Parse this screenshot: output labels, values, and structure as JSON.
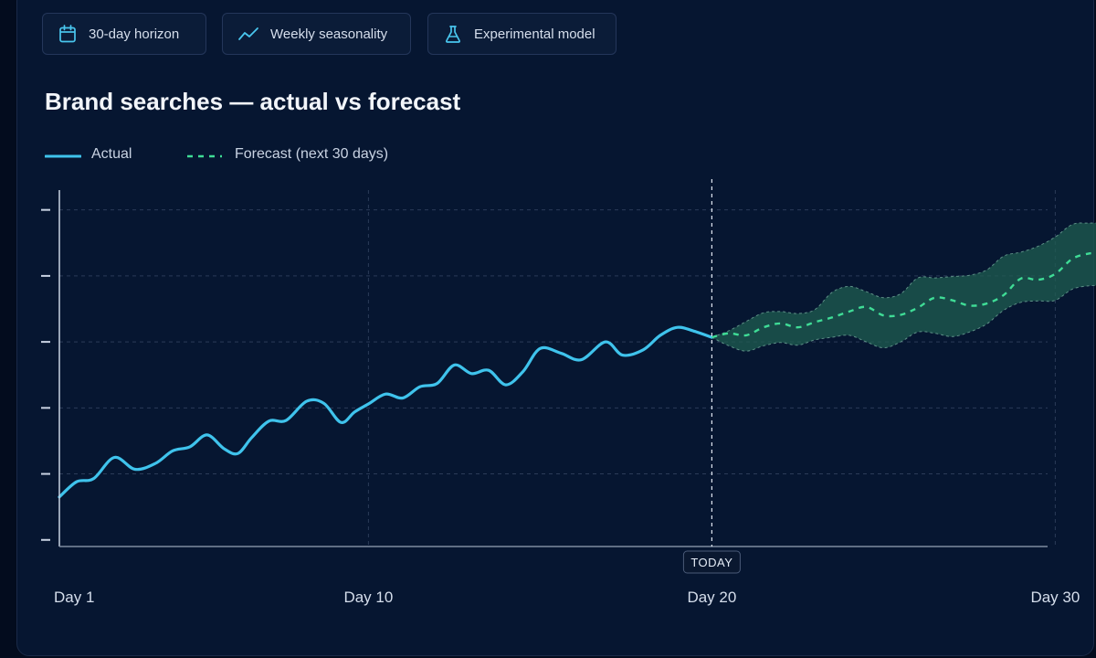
{
  "toolbar": {
    "chips": [
      {
        "label": "30-day horizon",
        "icon": "calendar-icon"
      },
      {
        "label": "Weekly seasonality",
        "icon": "trend-line-icon"
      },
      {
        "label": "Experimental model",
        "icon": "flask-icon"
      }
    ]
  },
  "colors": {
    "actual": "#3fc3ec",
    "forecast": "#3fdc96",
    "band": "#1f5e50",
    "accent_icon": "#49c6ee"
  },
  "chart_data": {
    "type": "line",
    "title": "Brand searches — actual vs forecast",
    "xlabel": "",
    "ylabel": "",
    "x_ticks": [
      {
        "day": 1,
        "label": "Day 1"
      },
      {
        "day": 10,
        "label": "Day 10"
      },
      {
        "day": 20,
        "label": "Day 20"
      },
      {
        "day": 30,
        "label": "Day 30"
      }
    ],
    "xlim": [
      1,
      31.4
    ],
    "ylim": [
      0,
      5.4
    ],
    "y_ticks": [
      0.1,
      1.1,
      2.1,
      3.1,
      4.1,
      5.1
    ],
    "y_tick_labels_visible": false,
    "grid": true,
    "legend_position": "top-left",
    "today": {
      "day": 20,
      "label": "TODAY"
    },
    "series": [
      {
        "name": "Actual",
        "style": "solid",
        "points": [
          [
            1.0,
            0.75
          ],
          [
            1.5,
            0.98
          ],
          [
            2.0,
            1.03
          ],
          [
            2.6,
            1.35
          ],
          [
            3.2,
            1.17
          ],
          [
            3.8,
            1.26
          ],
          [
            4.3,
            1.45
          ],
          [
            4.8,
            1.51
          ],
          [
            5.3,
            1.69
          ],
          [
            5.8,
            1.48
          ],
          [
            6.2,
            1.41
          ],
          [
            6.6,
            1.65
          ],
          [
            7.1,
            1.9
          ],
          [
            7.6,
            1.91
          ],
          [
            8.2,
            2.2
          ],
          [
            8.7,
            2.17
          ],
          [
            9.2,
            1.88
          ],
          [
            9.6,
            2.04
          ],
          [
            10.0,
            2.16
          ],
          [
            10.5,
            2.31
          ],
          [
            11.0,
            2.25
          ],
          [
            11.5,
            2.42
          ],
          [
            12.0,
            2.47
          ],
          [
            12.5,
            2.75
          ],
          [
            13.0,
            2.62
          ],
          [
            13.5,
            2.67
          ],
          [
            14.0,
            2.45
          ],
          [
            14.5,
            2.65
          ],
          [
            15.0,
            3.0
          ],
          [
            15.6,
            2.93
          ],
          [
            16.2,
            2.83
          ],
          [
            16.9,
            3.1
          ],
          [
            17.4,
            2.9
          ],
          [
            18.0,
            2.98
          ],
          [
            18.5,
            3.2
          ],
          [
            19.0,
            3.32
          ],
          [
            19.5,
            3.26
          ],
          [
            20.0,
            3.17
          ]
        ]
      },
      {
        "name": "Forecast (next 30 days)",
        "style": "dashed",
        "points": [
          [
            20.0,
            3.17
          ],
          [
            20.5,
            3.23
          ],
          [
            21.0,
            3.2
          ],
          [
            21.5,
            3.32
          ],
          [
            22.0,
            3.38
          ],
          [
            22.5,
            3.32
          ],
          [
            23.0,
            3.4
          ],
          [
            23.5,
            3.47
          ],
          [
            24.0,
            3.56
          ],
          [
            24.5,
            3.63
          ],
          [
            25.0,
            3.5
          ],
          [
            25.5,
            3.51
          ],
          [
            26.0,
            3.62
          ],
          [
            26.5,
            3.77
          ],
          [
            27.0,
            3.73
          ],
          [
            27.5,
            3.65
          ],
          [
            28.0,
            3.68
          ],
          [
            28.5,
            3.81
          ],
          [
            29.0,
            4.06
          ],
          [
            29.5,
            4.04
          ],
          [
            30.0,
            4.13
          ],
          [
            30.5,
            4.36
          ],
          [
            31.0,
            4.44
          ],
          [
            31.4,
            4.44
          ]
        ],
        "band_upper": [
          [
            20.0,
            3.17
          ],
          [
            20.5,
            3.27
          ],
          [
            21.0,
            3.41
          ],
          [
            21.5,
            3.54
          ],
          [
            22.0,
            3.56
          ],
          [
            22.5,
            3.53
          ],
          [
            23.0,
            3.59
          ],
          [
            23.5,
            3.85
          ],
          [
            24.0,
            3.94
          ],
          [
            24.5,
            3.86
          ],
          [
            25.0,
            3.77
          ],
          [
            25.5,
            3.83
          ],
          [
            26.0,
            4.07
          ],
          [
            26.5,
            4.07
          ],
          [
            27.0,
            4.09
          ],
          [
            27.5,
            4.11
          ],
          [
            28.0,
            4.19
          ],
          [
            28.5,
            4.4
          ],
          [
            29.0,
            4.46
          ],
          [
            29.5,
            4.55
          ],
          [
            30.0,
            4.69
          ],
          [
            30.5,
            4.88
          ],
          [
            31.0,
            4.9
          ],
          [
            31.4,
            4.9
          ]
        ],
        "band_lower": [
          [
            20.0,
            3.17
          ],
          [
            20.5,
            3.04
          ],
          [
            21.0,
            2.96
          ],
          [
            21.5,
            3.04
          ],
          [
            22.0,
            3.09
          ],
          [
            22.5,
            3.05
          ],
          [
            23.0,
            3.13
          ],
          [
            23.5,
            3.17
          ],
          [
            24.0,
            3.2
          ],
          [
            24.5,
            3.1
          ],
          [
            25.0,
            3.01
          ],
          [
            25.5,
            3.1
          ],
          [
            26.0,
            3.25
          ],
          [
            26.5,
            3.23
          ],
          [
            27.0,
            3.18
          ],
          [
            27.5,
            3.25
          ],
          [
            28.0,
            3.37
          ],
          [
            28.5,
            3.58
          ],
          [
            29.0,
            3.7
          ],
          [
            29.5,
            3.72
          ],
          [
            30.0,
            3.73
          ],
          [
            30.5,
            3.9
          ],
          [
            31.0,
            3.95
          ],
          [
            31.4,
            3.95
          ]
        ]
      }
    ]
  }
}
